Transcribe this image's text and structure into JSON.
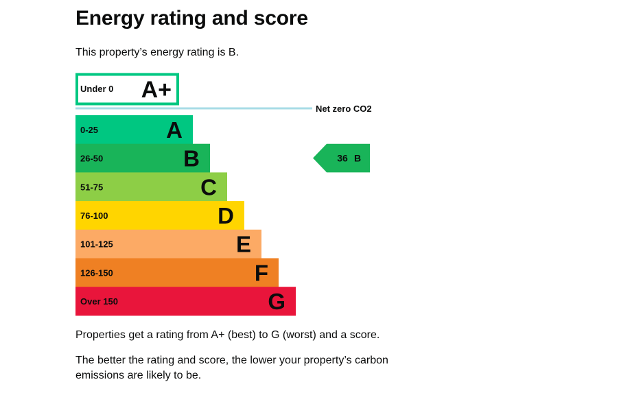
{
  "page": {
    "heading": "Energy rating and score",
    "intro": "This property’s energy rating is B.",
    "notes": [
      "Properties get a rating from A+ (best) to G (worst) and a score.",
      "The better the rating and score, the lower your property’s carbon emissions are likely to be."
    ]
  },
  "chart_data": {
    "type": "bar",
    "orientation": "horizontal",
    "title": "",
    "net_zero_label": "Net zero CO2",
    "bands": [
      {
        "rating": "A+",
        "range": "Under 0",
        "color": "#00c781",
        "style": "outline"
      },
      {
        "rating": "A",
        "range": "0-25",
        "color": "#00c781"
      },
      {
        "rating": "B",
        "range": "26-50",
        "color": "#19b459"
      },
      {
        "rating": "C",
        "range": "51-75",
        "color": "#8dce46"
      },
      {
        "rating": "D",
        "range": "76-100",
        "color": "#ffd500"
      },
      {
        "rating": "E",
        "range": "101-125",
        "color": "#fcaa65"
      },
      {
        "rating": "F",
        "range": "126-150",
        "color": "#ef8023"
      },
      {
        "rating": "G",
        "range": "Over 150",
        "color": "#e9153b"
      }
    ],
    "current": {
      "score": 36,
      "rating": "B",
      "color": "#19b459"
    },
    "net_zero_line_color": "#a8dce6"
  }
}
